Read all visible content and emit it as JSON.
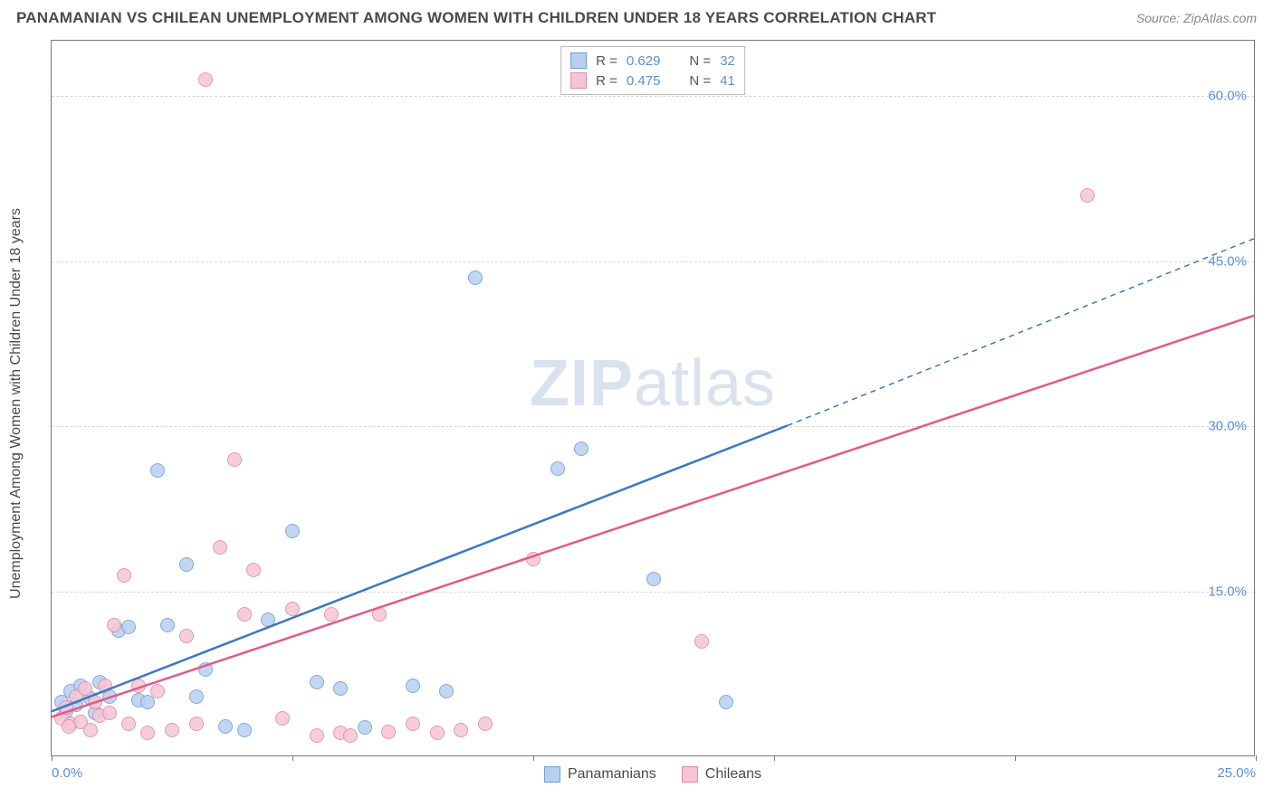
{
  "header": {
    "title": "PANAMANIAN VS CHILEAN UNEMPLOYMENT AMONG WOMEN WITH CHILDREN UNDER 18 YEARS CORRELATION CHART",
    "source": "Source: ZipAtlas.com"
  },
  "chart": {
    "type": "scatter",
    "ylabel": "Unemployment Among Women with Children Under 18 years",
    "xlim": [
      0,
      25
    ],
    "ylim": [
      0,
      65
    ],
    "xticks": [
      0,
      5,
      10,
      15,
      20,
      25
    ],
    "xtick_labels": [
      "0.0%",
      "",
      "",
      "",
      "",
      "25.0%"
    ],
    "yticks": [
      15,
      30,
      45,
      60
    ],
    "ytick_labels": [
      "15.0%",
      "30.0%",
      "45.0%",
      "60.0%"
    ],
    "grid_color": "#d8d8d8",
    "border_color": "#7a7a7a",
    "background_color": "#ffffff",
    "tick_label_color": "#5b8fd6",
    "axis_label_color": "#4a4a4a",
    "tick_fontsize": 15,
    "label_fontsize": 16,
    "point_radius": 8,
    "watermark": {
      "text_bold": "ZIP",
      "text_rest": "atlas",
      "color": "#c9d6e8"
    },
    "series": [
      {
        "name": "Panamanians",
        "fill_color": "#b8d0ee",
        "stroke_color": "#6a9fd8",
        "line_color": "#3b78c4",
        "R": "0.629",
        "N": "32",
        "trend": {
          "x1": 0,
          "y1": 4.0,
          "x2": 15.3,
          "y2": 30.0,
          "dash_x2": 25,
          "dash_y2": 47.0
        },
        "points": [
          [
            0.2,
            5.0
          ],
          [
            0.3,
            4.2
          ],
          [
            0.4,
            6.0
          ],
          [
            0.5,
            4.8
          ],
          [
            0.6,
            6.5
          ],
          [
            0.8,
            5.3
          ],
          [
            1.0,
            6.8
          ],
          [
            1.2,
            5.5
          ],
          [
            1.4,
            11.5
          ],
          [
            1.6,
            11.8
          ],
          [
            1.8,
            5.2
          ],
          [
            2.0,
            5.0
          ],
          [
            2.2,
            26.0
          ],
          [
            2.4,
            12.0
          ],
          [
            2.8,
            17.5
          ],
          [
            3.0,
            5.5
          ],
          [
            3.2,
            8.0
          ],
          [
            3.6,
            2.8
          ],
          [
            4.0,
            2.5
          ],
          [
            4.5,
            12.5
          ],
          [
            5.0,
            20.5
          ],
          [
            5.5,
            6.8
          ],
          [
            6.0,
            6.2
          ],
          [
            6.5,
            2.7
          ],
          [
            7.5,
            6.5
          ],
          [
            8.8,
            43.5
          ],
          [
            10.5,
            26.2
          ],
          [
            11.0,
            28.0
          ],
          [
            12.5,
            16.2
          ],
          [
            14.0,
            5.0
          ],
          [
            8.2,
            6.0
          ],
          [
            0.9,
            4.0
          ]
        ]
      },
      {
        "name": "Chileans",
        "fill_color": "#f4c6d4",
        "stroke_color": "#e387a6",
        "line_color": "#e05a8a",
        "R": "0.475",
        "N": "41",
        "trend": {
          "x1": 0,
          "y1": 3.5,
          "x2": 25,
          "y2": 40.0
        },
        "points": [
          [
            0.2,
            3.5
          ],
          [
            0.3,
            4.5
          ],
          [
            0.4,
            3.0
          ],
          [
            0.5,
            5.5
          ],
          [
            0.6,
            3.2
          ],
          [
            0.7,
            6.2
          ],
          [
            0.8,
            2.5
          ],
          [
            0.9,
            5.0
          ],
          [
            1.0,
            3.8
          ],
          [
            1.1,
            6.5
          ],
          [
            1.3,
            12.0
          ],
          [
            1.5,
            16.5
          ],
          [
            1.6,
            3.0
          ],
          [
            1.8,
            6.5
          ],
          [
            2.0,
            2.2
          ],
          [
            2.2,
            6.0
          ],
          [
            2.5,
            2.5
          ],
          [
            2.8,
            11.0
          ],
          [
            3.0,
            3.0
          ],
          [
            3.2,
            61.5
          ],
          [
            3.5,
            19.0
          ],
          [
            3.8,
            27.0
          ],
          [
            4.0,
            13.0
          ],
          [
            4.2,
            17.0
          ],
          [
            4.8,
            3.5
          ],
          [
            5.0,
            13.5
          ],
          [
            5.5,
            2.0
          ],
          [
            5.8,
            13.0
          ],
          [
            6.0,
            2.2
          ],
          [
            6.2,
            2.0
          ],
          [
            6.8,
            13.0
          ],
          [
            7.0,
            2.3
          ],
          [
            7.5,
            3.0
          ],
          [
            8.0,
            2.2
          ],
          [
            8.5,
            2.5
          ],
          [
            9.0,
            3.0
          ],
          [
            10.0,
            18.0
          ],
          [
            13.5,
            10.5
          ],
          [
            21.5,
            51.0
          ],
          [
            1.2,
            4.0
          ],
          [
            0.35,
            2.8
          ]
        ]
      }
    ],
    "legend_bottom": [
      {
        "label": "Panamanians",
        "fill": "#b8d0ee",
        "stroke": "#6a9fd8"
      },
      {
        "label": "Chileans",
        "fill": "#f4c6d4",
        "stroke": "#e387a6"
      }
    ]
  }
}
